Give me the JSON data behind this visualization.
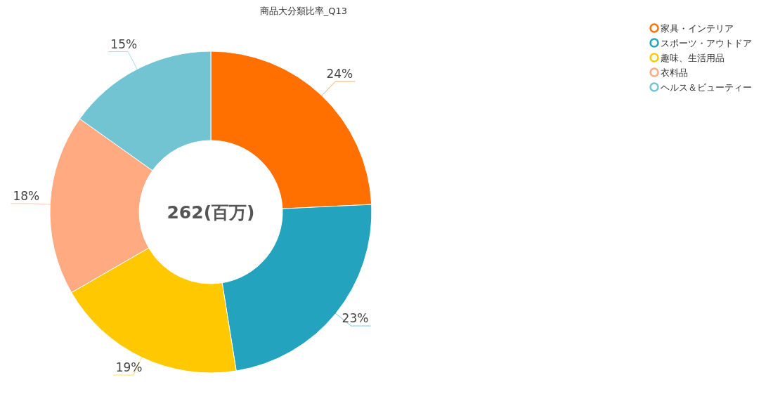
{
  "chart_data": {
    "type": "donut",
    "title": "商品大分類比率_Q13",
    "categories": [
      "家具・インテリア",
      "スポーツ・アウトドア",
      "趣味、生活用品",
      "衣料品",
      "ヘルス＆ビューティー"
    ],
    "values": [
      24,
      23,
      19,
      18,
      15
    ],
    "value_labels": [
      "24%",
      "23%",
      "19%",
      "18%",
      "15%"
    ],
    "colors": [
      "#ff7000",
      "#23a3be",
      "#ffc800",
      "#ffaa80",
      "#72c4d3"
    ],
    "annotations": [
      "262(百万)"
    ],
    "legend": "top right"
  }
}
